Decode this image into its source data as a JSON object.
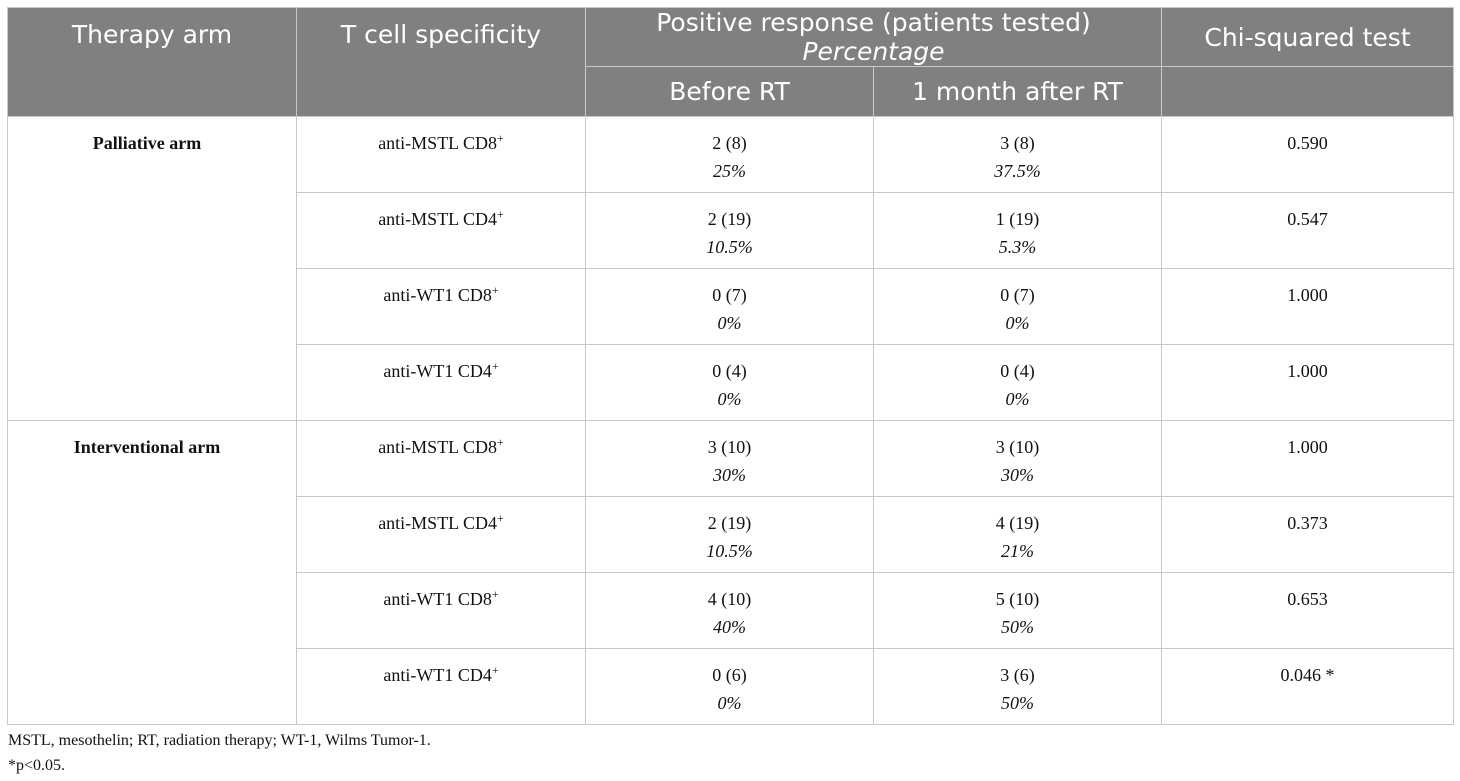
{
  "header": {
    "therapy_arm": "Therapy arm",
    "specificity": "T cell specificity",
    "response_main": "Positive response (patients tested) ",
    "response_italic": "Percentage",
    "chi": "Chi-squared test",
    "before": "Before RT",
    "after": "1 month after RT"
  },
  "groups": [
    {
      "arm": "Palliative arm",
      "rows": [
        {
          "spec": "anti-MSTL CD8",
          "sup": "+",
          "before_count": "2 (8)",
          "before_pct": "25%",
          "after_count": "3 (8)",
          "after_pct": "37.5%",
          "chi": "0.590"
        },
        {
          "spec": "anti-MSTL CD4",
          "sup": "+",
          "before_count": "2 (19)",
          "before_pct": "10.5%",
          "after_count": "1 (19)",
          "after_pct": "5.3%",
          "chi": "0.547"
        },
        {
          "spec": "anti-WT1 CD8",
          "sup": "+",
          "before_count": "0 (7)",
          "before_pct": "0%",
          "after_count": "0 (7)",
          "after_pct": "0%",
          "chi": "1.000"
        },
        {
          "spec": "anti-WT1 CD4",
          "sup": "+",
          "before_count": "0 (4)",
          "before_pct": "0%",
          "after_count": "0 (4)",
          "after_pct": "0%",
          "chi": "1.000"
        }
      ]
    },
    {
      "arm": "Interventional arm",
      "rows": [
        {
          "spec": "anti-MSTL CD8",
          "sup": "+",
          "before_count": "3 (10)",
          "before_pct": "30%",
          "after_count": "3 (10)",
          "after_pct": "30%",
          "chi": "1.000"
        },
        {
          "spec": "anti-MSTL CD4",
          "sup": "+",
          "before_count": "2 (19)",
          "before_pct": "10.5%",
          "after_count": "4 (19)",
          "after_pct": "21%",
          "chi": "0.373"
        },
        {
          "spec": "anti-WT1 CD8",
          "sup": "+",
          "before_count": "4 (10)",
          "before_pct": "40%",
          "after_count": "5 (10)",
          "after_pct": "50%",
          "chi": "0.653"
        },
        {
          "spec": "anti-WT1 CD4",
          "sup": "+",
          "before_count": "0 (6)",
          "before_pct": "0%",
          "after_count": "3 (6)",
          "after_pct": "50%",
          "chi": "0.046 *"
        }
      ]
    }
  ],
  "footnotes": {
    "abbrev": "MSTL, mesothelin; RT, radiation therapy; WT-1, Wilms Tumor-1.",
    "sig": "*p<0.05."
  }
}
